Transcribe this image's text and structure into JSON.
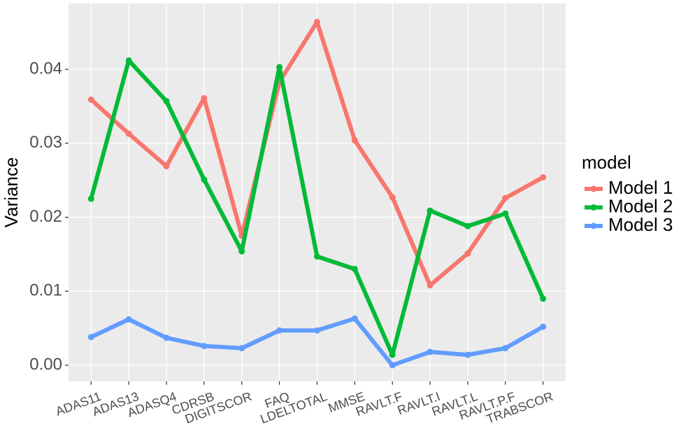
{
  "chart_data": {
    "type": "line",
    "y_label": "Variance",
    "legend_title": "model",
    "legend_position": "right",
    "grid": true,
    "categories": [
      "ADAS11",
      "ADAS13",
      "ADASQ4",
      "CDRSB",
      "DIGITSCOR",
      "FAQ",
      "LDELTOTAL",
      "MMSE",
      "RAVLT.F",
      "RAVLT.I",
      "RAVLT.L",
      "RAVLT.P.F",
      "TRABSCOR"
    ],
    "series": [
      {
        "name": "Model 1",
        "color": "#F8766D",
        "values": [
          0.0359,
          0.0313,
          0.0269,
          0.0361,
          0.0175,
          0.0383,
          0.0464,
          0.0304,
          0.0227,
          0.0108,
          0.0151,
          0.0226,
          0.0254
        ]
      },
      {
        "name": "Model 2",
        "color": "#00BA38",
        "values": [
          0.0225,
          0.0412,
          0.0357,
          0.0251,
          0.0154,
          0.0403,
          0.0147,
          0.013,
          0.0014,
          0.0209,
          0.0188,
          0.0205,
          0.009
        ]
      },
      {
        "name": "Model 3",
        "color": "#619CFF",
        "values": [
          0.0038,
          0.0062,
          0.0037,
          0.0026,
          0.0023,
          0.0047,
          0.0047,
          0.0063,
          0.0,
          0.0018,
          0.0014,
          0.0023,
          0.0052
        ]
      }
    ],
    "ylim": [
      -0.00217,
      0.0489
    ],
    "yticks": [
      {
        "value": 0,
        "label": "0.00"
      },
      0.01,
      0.02,
      0.03,
      0.04
    ]
  }
}
